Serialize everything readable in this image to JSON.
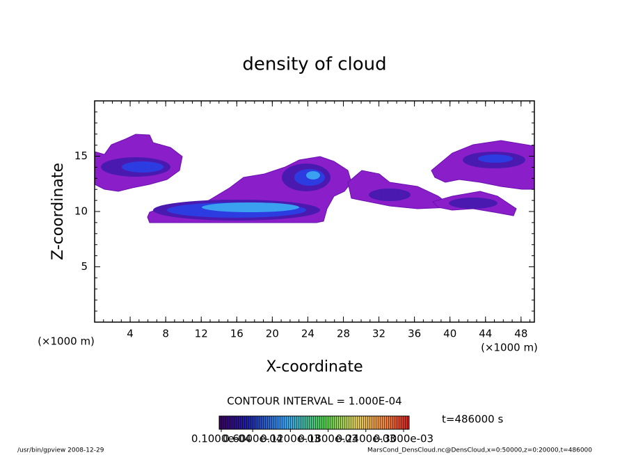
{
  "chart_data": {
    "type": "contour",
    "title": "density of cloud",
    "x_label": "X-coordinate",
    "y_label": "Z-coordinate",
    "x_unit": "(×1000 m)",
    "y_unit": "(×1000 m)",
    "xlim": [
      0,
      49.5
    ],
    "ylim": [
      0,
      20
    ],
    "xticks": [
      4,
      8,
      12,
      16,
      20,
      24,
      28,
      32,
      36,
      40,
      44,
      48
    ],
    "yticks": [
      5,
      10,
      15
    ],
    "contour_note": "CONTOUR INTERVAL = 1.000E-04",
    "time_label": "t=486000 s",
    "colorbar": {
      "lim": [
        1e-05,
        0.0003
      ],
      "ticks": [
        {
          "value": 1e-05,
          "label": "0.1000e-04"
        },
        {
          "value": 6e-05,
          "label": "0.6000e-04"
        },
        {
          "value": 0.00012,
          "label": "0.1200e-03"
        },
        {
          "value": 0.00018,
          "label": "0.1800e-03"
        },
        {
          "value": 0.00024,
          "label": "0.2400e-03"
        },
        {
          "value": 0.0003,
          "label": "0.3000e-03"
        }
      ]
    },
    "footer_left": "/usr/bin/gpview  2008-12-29",
    "footer_right": "MarsCond_DensCloud.nc@DensCloud,x=0:50000,z=0:20000,t=486000"
  }
}
